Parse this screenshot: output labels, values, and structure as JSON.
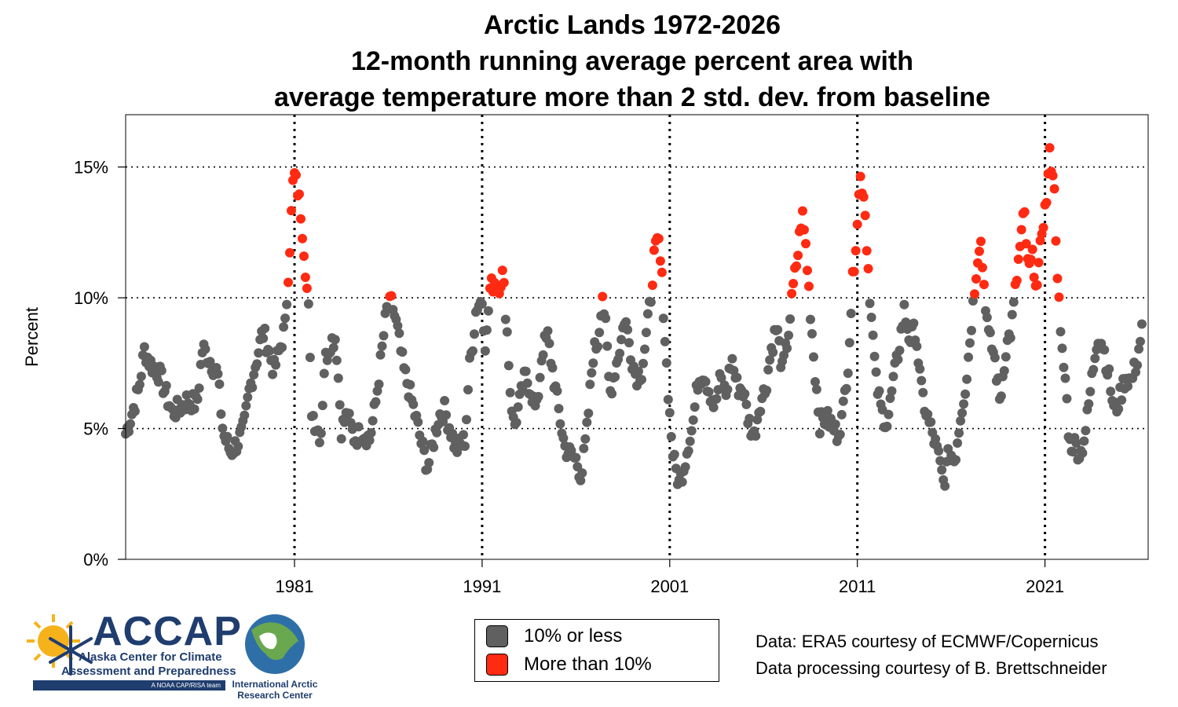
{
  "title_lines": [
    "Arctic Lands 1972-2026",
    "12-month running average percent area with",
    "average temperature more than 2 std. dev. from baseline"
  ],
  "legend": {
    "items": [
      {
        "label": "10% or less",
        "color": "#606060"
      },
      {
        "label": "More than 10%",
        "color": "#ff2a12"
      }
    ]
  },
  "credits": {
    "line1": "Data: ERA5 courtesy of ECMWF/Copernicus",
    "line2": "Data processing courtesy of B. Brettschneider"
  },
  "logos": {
    "accap": {
      "name": "ACCAP",
      "sub1": "Alaska Center for Climate",
      "sub2": "Assessment and Preparedness",
      "tag": "A NOAA CAP/RISA team"
    },
    "iarc": {
      "line1": "International Arctic",
      "line2": "Research Center"
    }
  },
  "colors": {
    "normal": "#606060",
    "high": "#ff2a12",
    "grid": "#000000"
  },
  "chart_data": {
    "type": "scatter",
    "title": "Arctic Lands 1972-2026",
    "subtitle": "12-month running average percent area with average temperature more than 2 std. dev. from baseline",
    "xlabel": "",
    "ylabel": "Percent",
    "xlim": [
      1972.0,
      2026.5
    ],
    "ylim": [
      0,
      17
    ],
    "y_ticks": [
      0,
      5,
      10,
      15
    ],
    "y_tick_labels": [
      "0%",
      "5%",
      "10%",
      "15%"
    ],
    "x_ticks": [
      1981,
      1991,
      2001,
      2011,
      2021
    ],
    "x_tick_labels": [
      "1981",
      "1991",
      "2001",
      "2011",
      "2021"
    ],
    "threshold": 10,
    "grid": "dotted horizontal at 5, 10, 15; dotted vertical at decade ticks",
    "legend_position": "bottom-center",
    "anchors": [
      [
        1972.0,
        4.8
      ],
      [
        1972.3,
        5.5
      ],
      [
        1972.7,
        6.5
      ],
      [
        1973.0,
        8.0
      ],
      [
        1973.3,
        7.5
      ],
      [
        1973.8,
        7.1
      ],
      [
        1974.2,
        6.2
      ],
      [
        1974.5,
        5.6
      ],
      [
        1974.9,
        5.8
      ],
      [
        1975.3,
        6.1
      ],
      [
        1975.8,
        5.9
      ],
      [
        1976.1,
        8.1
      ],
      [
        1976.5,
        7.6
      ],
      [
        1976.9,
        7.1
      ],
      [
        1977.2,
        4.8
      ],
      [
        1977.6,
        4.1
      ],
      [
        1978.0,
        4.5
      ],
      [
        1978.3,
        5.0
      ],
      [
        1978.6,
        6.5
      ],
      [
        1979.0,
        7.7
      ],
      [
        1979.3,
        8.7
      ],
      [
        1979.6,
        8.1
      ],
      [
        1979.9,
        7.2
      ],
      [
        1980.2,
        8.0
      ],
      [
        1980.5,
        8.9
      ],
      [
        1980.75,
        12.0
      ],
      [
        1980.95,
        14.8
      ],
      [
        1981.15,
        14.2
      ],
      [
        1981.35,
        13.2
      ],
      [
        1981.55,
        11.5
      ],
      [
        1981.75,
        9.5
      ],
      [
        1981.9,
        5.8
      ],
      [
        1982.1,
        5.2
      ],
      [
        1982.4,
        4.7
      ],
      [
        1982.6,
        7.5
      ],
      [
        1982.9,
        8.3
      ],
      [
        1983.2,
        8.5
      ],
      [
        1983.5,
        5.0
      ],
      [
        1983.8,
        5.5
      ],
      [
        1984.2,
        4.6
      ],
      [
        1984.6,
        4.9
      ],
      [
        1985.0,
        4.6
      ],
      [
        1985.3,
        5.8
      ],
      [
        1985.6,
        7.6
      ],
      [
        1985.9,
        9.5
      ],
      [
        1986.2,
        9.8
      ],
      [
        1986.5,
        8.7
      ],
      [
        1986.8,
        7.3
      ],
      [
        1987.1,
        6.5
      ],
      [
        1987.5,
        5.3
      ],
      [
        1987.8,
        4.3
      ],
      [
        1988.1,
        3.5
      ],
      [
        1988.4,
        4.5
      ],
      [
        1988.7,
        5.5
      ],
      [
        1989.0,
        5.7
      ],
      [
        1989.3,
        5.0
      ],
      [
        1989.6,
        4.2
      ],
      [
        1989.9,
        4.4
      ],
      [
        1990.1,
        4.6
      ],
      [
        1990.3,
        7.2
      ],
      [
        1990.5,
        8.3
      ],
      [
        1990.7,
        9.7
      ],
      [
        1991.0,
        9.9
      ],
      [
        1991.2,
        8.0
      ],
      [
        1991.4,
        10.3
      ],
      [
        1991.7,
        10.7
      ],
      [
        1991.9,
        10.5
      ],
      [
        1992.1,
        10.9
      ],
      [
        1992.3,
        9.1
      ],
      [
        1992.5,
        6.5
      ],
      [
        1992.7,
        5.0
      ],
      [
        1993.0,
        6.0
      ],
      [
        1993.3,
        7.0
      ],
      [
        1993.6,
        6.5
      ],
      [
        1993.9,
        5.6
      ],
      [
        1994.2,
        8.0
      ],
      [
        1994.5,
        8.5
      ],
      [
        1994.8,
        7.0
      ],
      [
        1995.1,
        5.6
      ],
      [
        1995.4,
        4.3
      ],
      [
        1995.7,
        4.0
      ],
      [
        1996.0,
        3.8
      ],
      [
        1996.3,
        3.2
      ],
      [
        1996.6,
        5.0
      ],
      [
        1996.9,
        7.8
      ],
      [
        1997.2,
        8.4
      ],
      [
        1997.4,
        10.3
      ],
      [
        1997.6,
        8.7
      ],
      [
        1997.8,
        6.3
      ],
      [
        1998.1,
        7.3
      ],
      [
        1998.4,
        8.3
      ],
      [
        1998.6,
        9.3
      ],
      [
        1998.9,
        8.0
      ],
      [
        1999.2,
        7.0
      ],
      [
        1999.5,
        7.2
      ],
      [
        1999.8,
        8.8
      ],
      [
        2000.0,
        10.1
      ],
      [
        2000.15,
        11.5
      ],
      [
        2000.4,
        12.2
      ],
      [
        2000.6,
        10.5
      ],
      [
        2000.8,
        7.8
      ],
      [
        2001.0,
        5.5
      ],
      [
        2001.2,
        3.8
      ],
      [
        2001.5,
        2.9
      ],
      [
        2001.8,
        3.7
      ],
      [
        2002.0,
        4.5
      ],
      [
        2002.2,
        5.0
      ],
      [
        2002.5,
        6.8
      ],
      [
        2002.8,
        7.2
      ],
      [
        2003.1,
        6.5
      ],
      [
        2003.4,
        5.8
      ],
      [
        2003.7,
        6.9
      ],
      [
        2004.0,
        6.3
      ],
      [
        2004.3,
        7.7
      ],
      [
        2004.6,
        6.6
      ],
      [
        2004.9,
        6.5
      ],
      [
        2005.2,
        5.3
      ],
      [
        2005.5,
        4.7
      ],
      [
        2005.8,
        6.0
      ],
      [
        2006.1,
        6.5
      ],
      [
        2006.4,
        8.0
      ],
      [
        2006.7,
        8.9
      ],
      [
        2007.0,
        7.2
      ],
      [
        2007.3,
        8.5
      ],
      [
        2007.6,
        10.5
      ],
      [
        2007.85,
        11.8
      ],
      [
        2008.05,
        13.3
      ],
      [
        2008.25,
        12.0
      ],
      [
        2008.45,
        10.0
      ],
      [
        2008.7,
        7.5
      ],
      [
        2009.0,
        5.2
      ],
      [
        2009.3,
        5.4
      ],
      [
        2009.6,
        5.2
      ],
      [
        2009.9,
        4.8
      ],
      [
        2010.2,
        5.4
      ],
      [
        2010.5,
        7.5
      ],
      [
        2010.75,
        10.6
      ],
      [
        2010.95,
        12.5
      ],
      [
        2011.15,
        14.6
      ],
      [
        2011.35,
        14.0
      ],
      [
        2011.55,
        11.5
      ],
      [
        2011.75,
        9.2
      ],
      [
        2012.0,
        6.8
      ],
      [
        2012.3,
        5.6
      ],
      [
        2012.6,
        5.2
      ],
      [
        2012.9,
        6.7
      ],
      [
        2013.2,
        8.0
      ],
      [
        2013.5,
        9.5
      ],
      [
        2013.8,
        8.4
      ],
      [
        2014.1,
        8.8
      ],
      [
        2014.4,
        6.5
      ],
      [
        2014.7,
        5.5
      ],
      [
        2015.0,
        4.8
      ],
      [
        2015.3,
        4.0
      ],
      [
        2015.6,
        2.9
      ],
      [
        2015.9,
        4.1
      ],
      [
        2016.2,
        3.8
      ],
      [
        2016.5,
        5.5
      ],
      [
        2016.8,
        6.8
      ],
      [
        2017.1,
        9.2
      ],
      [
        2017.35,
        11.2
      ],
      [
        2017.55,
        12.4
      ],
      [
        2017.75,
        10.5
      ],
      [
        2018.0,
        8.5
      ],
      [
        2018.3,
        7.8
      ],
      [
        2018.6,
        6.0
      ],
      [
        2018.9,
        8.0
      ],
      [
        2019.2,
        8.8
      ],
      [
        2019.4,
        10.1
      ],
      [
        2019.65,
        11.8
      ],
      [
        2019.9,
        13.3
      ],
      [
        2020.1,
        11.0
      ],
      [
        2020.35,
        11.5
      ],
      [
        2020.6,
        10.3
      ],
      [
        2020.85,
        12.8
      ],
      [
        2021.05,
        13.5
      ],
      [
        2021.25,
        15.4
      ],
      [
        2021.45,
        14.8
      ],
      [
        2021.65,
        11.3
      ],
      [
        2021.85,
        8.2
      ],
      [
        2022.1,
        6.8
      ],
      [
        2022.3,
        4.4
      ],
      [
        2022.6,
        4.4
      ],
      [
        2022.9,
        4.0
      ],
      [
        2023.2,
        5.1
      ],
      [
        2023.5,
        6.9
      ],
      [
        2023.8,
        8.6
      ],
      [
        2024.1,
        8.2
      ],
      [
        2024.4,
        7.0
      ],
      [
        2024.7,
        5.6
      ],
      [
        2025.0,
        6.2
      ],
      [
        2025.3,
        7.0
      ],
      [
        2025.6,
        6.8
      ],
      [
        2025.9,
        7.6
      ],
      [
        2026.2,
        8.9
      ]
    ],
    "points_per_year": 12,
    "series": [
      {
        "name": "10% or less",
        "color": "#606060",
        "rule": "value <= 10"
      },
      {
        "name": "More than 10%",
        "color": "#ff2a12",
        "rule": "value > 10"
      }
    ]
  }
}
